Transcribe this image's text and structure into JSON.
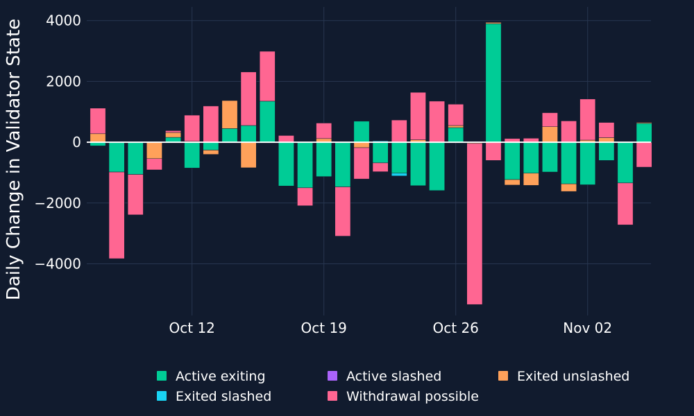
{
  "chart_data": {
    "type": "bar",
    "barmode": "relative",
    "title": "",
    "xlabel": "",
    "ylabel": "Daily Change in Validator State",
    "ylim": [
      -5700,
      4450
    ],
    "yticks": [
      4000,
      2000,
      0,
      -2000,
      -4000
    ],
    "ytick_labels": [
      "4000",
      "2000",
      "0",
      "−2000",
      "−4000"
    ],
    "x_start_date": "Oct 7",
    "xticks": [
      {
        "label": "Oct 12",
        "day_index": 5
      },
      {
        "label": "Oct 19",
        "day_index": 12
      },
      {
        "label": "Oct 26",
        "day_index": 19
      },
      {
        "label": "Nov 02",
        "day_index": 26
      }
    ],
    "num_days": 30,
    "legend_position": "bottom-center",
    "series": [
      {
        "name": "Active exiting",
        "color": "#00cc96",
        "values": [
          -120,
          -980,
          -1060,
          0,
          160,
          -850,
          -260,
          450,
          550,
          1350,
          -1440,
          -1500,
          -1130,
          -1470,
          690,
          -680,
          -1020,
          -1430,
          -1590,
          480,
          0,
          3900,
          -1230,
          -1020,
          -980,
          -1370,
          -1400,
          -600,
          -1340,
          620
        ]
      },
      {
        "name": "Active slashed",
        "color": "#ab63fa",
        "values": [
          0,
          0,
          0,
          0,
          0,
          0,
          0,
          0,
          0,
          0,
          0,
          0,
          0,
          0,
          0,
          0,
          0,
          0,
          0,
          0,
          0,
          0,
          0,
          0,
          0,
          0,
          0,
          0,
          0,
          0
        ]
      },
      {
        "name": "Exited unslashed",
        "color": "#ffa15a",
        "values": [
          280,
          0,
          0,
          -540,
          160,
          30,
          -140,
          920,
          -840,
          0,
          0,
          0,
          120,
          0,
          -180,
          0,
          0,
          80,
          0,
          70,
          -40,
          40,
          -180,
          -400,
          510,
          -250,
          70,
          150,
          0,
          30
        ]
      },
      {
        "name": "Exited slashed",
        "color": "#19d3f3",
        "values": [
          0,
          0,
          0,
          0,
          0,
          0,
          0,
          0,
          0,
          0,
          0,
          0,
          0,
          0,
          0,
          40,
          -90,
          0,
          0,
          0,
          0,
          0,
          0,
          0,
          0,
          0,
          0,
          0,
          0,
          0
        ]
      },
      {
        "name": "Withdrawal possible",
        "color": "#ff6692",
        "values": [
          840,
          -2850,
          -1330,
          -370,
          60,
          860,
          1190,
          0,
          1760,
          1640,
          220,
          -590,
          510,
          -1620,
          -1030,
          -290,
          730,
          1560,
          1350,
          700,
          -5300,
          -600,
          120,
          130,
          460,
          700,
          1350,
          500,
          -1380,
          -820
        ]
      }
    ],
    "legend": [
      {
        "label": "Active exiting",
        "color": "#00cc96"
      },
      {
        "label": "Active slashed",
        "color": "#ab63fa"
      },
      {
        "label": "Exited unslashed",
        "color": "#ffa15a"
      },
      {
        "label": "Exited slashed",
        "color": "#19d3f3"
      },
      {
        "label": "Withdrawal possible",
        "color": "#ff6692"
      }
    ]
  }
}
